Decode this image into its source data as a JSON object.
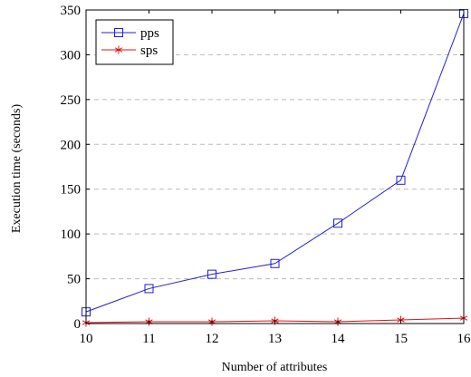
{
  "chart_data": {
    "type": "line",
    "title": "",
    "xlabel": "Number of attributes",
    "ylabel": "Execution time (seconds)",
    "x": [
      10,
      11,
      12,
      13,
      14,
      15,
      16
    ],
    "xlim": [
      10,
      16
    ],
    "ylim": [
      0,
      350
    ],
    "xticks": [
      "10",
      "11",
      "12",
      "13",
      "14",
      "15",
      "16"
    ],
    "yticks": [
      "0",
      "50",
      "100",
      "150",
      "200",
      "250",
      "300",
      "350"
    ],
    "grid": "horizontal-dashed",
    "legend_position": "top-left",
    "series": [
      {
        "name": "pps",
        "color": "#1f1fd6",
        "marker": "square",
        "values": [
          13,
          39,
          55,
          67,
          112,
          160,
          346
        ]
      },
      {
        "name": "sps",
        "color": "#e01010",
        "marker": "star",
        "values": [
          1,
          2,
          2,
          3,
          2,
          4,
          6
        ]
      }
    ]
  }
}
